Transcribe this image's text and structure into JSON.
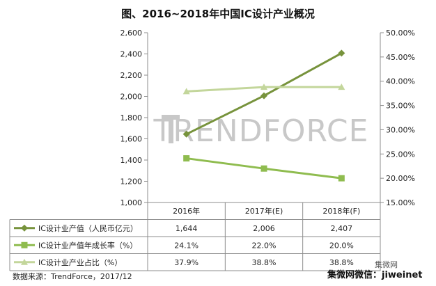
{
  "title": "图、2016~2018年中国IC设计产业概况",
  "watermark": "TRENDFORCE",
  "source": "数据来源：TrendForce，2017/12",
  "wechat": "集微网微信：jiweinet",
  "wechat_logo": "集微网",
  "chart_data": {
    "type": "line",
    "categories": [
      "2016年",
      "2017年(E)",
      "2018年(F)"
    ],
    "y_left": {
      "min": 1000,
      "max": 2600,
      "ticks": [
        "1,000",
        "1,200",
        "1,400",
        "1,600",
        "1,800",
        "2,000",
        "2,200",
        "2,400",
        "2,600"
      ]
    },
    "y_right": {
      "min": 15,
      "max": 50,
      "ticks": [
        "15.00%",
        "20.00%",
        "25.00%",
        "30.00%",
        "35.00%",
        "40.00%",
        "45.00%",
        "50.00%"
      ]
    },
    "series": [
      {
        "name": "IC设计业产值（人民币亿元）",
        "axis": "left",
        "marker": "diamond",
        "color": "#77933C",
        "values": [
          1644,
          2006,
          2407
        ],
        "labels": [
          "1,644",
          "2,006",
          "2,407"
        ]
      },
      {
        "name": "IC设计业产值年成长率（%）",
        "axis": "right",
        "marker": "square",
        "color": "#8FBC4F",
        "values": [
          24.1,
          22.0,
          20.0
        ],
        "labels": [
          "24.1%",
          "22.0%",
          "20.0%"
        ]
      },
      {
        "name": "IC设计业产业占比（%）",
        "axis": "right",
        "marker": "triangle",
        "color": "#C3D69B",
        "values": [
          37.9,
          38.8,
          38.8
        ],
        "labels": [
          "37.9%",
          "38.8%",
          "38.8%"
        ]
      }
    ],
    "grid": false,
    "legend": "table-below"
  }
}
